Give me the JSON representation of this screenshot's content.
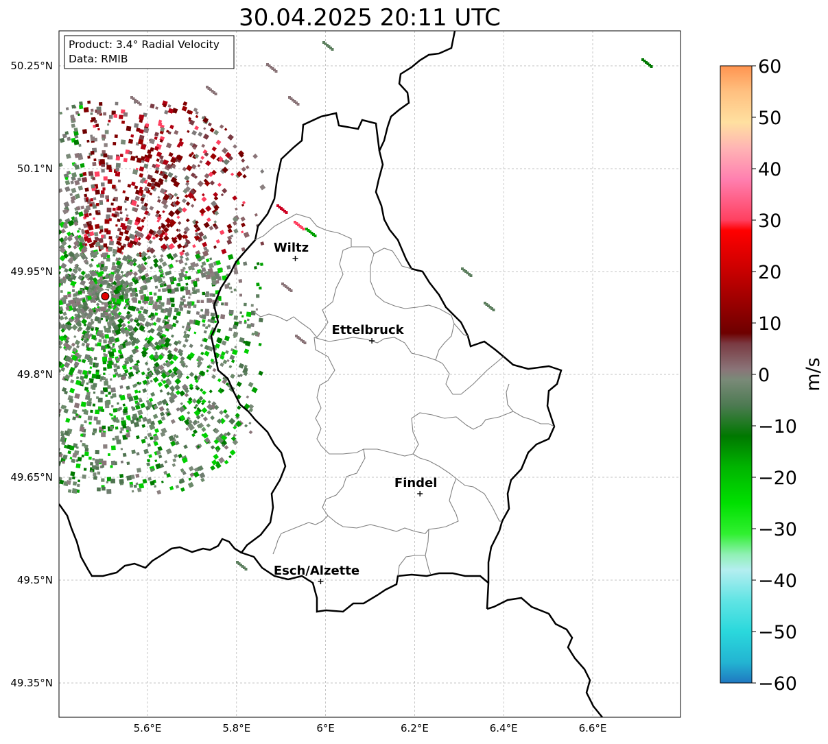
{
  "title": "30.04.2025 20:11 UTC",
  "info_box": {
    "product": "Product: 3.4° Radial Velocity",
    "data": "Data: RMIB"
  },
  "map": {
    "lon_range": [
      5.4,
      6.8
    ],
    "lat_range": [
      49.3,
      50.3
    ],
    "lon_ticks": [
      {
        "value": 5.6,
        "label": "5.6°E"
      },
      {
        "value": 5.8,
        "label": "5.8°E"
      },
      {
        "value": 6.0,
        "label": "6°E"
      },
      {
        "value": 6.2,
        "label": "6.2°E"
      },
      {
        "value": 6.4,
        "label": "6.4°E"
      },
      {
        "value": 6.6,
        "label": "6.6°E"
      }
    ],
    "lat_ticks": [
      {
        "value": 50.25,
        "label": "50.25°N"
      },
      {
        "value": 50.1,
        "label": "50.1°N"
      },
      {
        "value": 49.95,
        "label": "49.95°N"
      },
      {
        "value": 49.8,
        "label": "49.8°N"
      },
      {
        "value": 49.65,
        "label": "49.65°N"
      },
      {
        "value": 49.5,
        "label": "49.5°N"
      },
      {
        "value": 49.35,
        "label": "49.35°N"
      }
    ],
    "grid": true,
    "radar_site": {
      "lon": 5.505,
      "lat": 49.914
    },
    "cities": [
      {
        "name": "Wiltz",
        "lon": 5.932,
        "lat": 49.969
      },
      {
        "name": "Ettelbruck",
        "lon": 6.104,
        "lat": 49.849
      },
      {
        "name": "Findel",
        "lon": 6.212,
        "lat": 49.626
      },
      {
        "name": "Esch/Alzette",
        "lon": 5.989,
        "lat": 49.498
      }
    ],
    "colors": {
      "border": "#000000",
      "canton_lines": "#808080",
      "grid": "#b0b0b0",
      "radar_dot": "#e00000"
    }
  },
  "colorbar": {
    "unit": "m/s",
    "range": [
      -60,
      60
    ],
    "ticks": [
      {
        "value": 60,
        "label": "60"
      },
      {
        "value": 50,
        "label": "50"
      },
      {
        "value": 40,
        "label": "40"
      },
      {
        "value": 30,
        "label": "30"
      },
      {
        "value": 20,
        "label": "20"
      },
      {
        "value": 10,
        "label": "10"
      },
      {
        "value": 0,
        "label": "0"
      },
      {
        "value": -10,
        "label": "−10"
      },
      {
        "value": -20,
        "label": "−20"
      },
      {
        "value": -30,
        "label": "−30"
      },
      {
        "value": -40,
        "label": "−40"
      },
      {
        "value": -50,
        "label": "−50"
      },
      {
        "value": -60,
        "label": "−60"
      }
    ],
    "stops": [
      {
        "value": -60,
        "color": "#1f78c1"
      },
      {
        "value": -56,
        "color": "#23b4d2"
      },
      {
        "value": -50,
        "color": "#2ad8dc"
      },
      {
        "value": -44,
        "color": "#60e4e4"
      },
      {
        "value": -38,
        "color": "#b4eef0"
      },
      {
        "value": -35,
        "color": "#90f0b4"
      },
      {
        "value": -31,
        "color": "#30f030"
      },
      {
        "value": -25,
        "color": "#00e000"
      },
      {
        "value": -18,
        "color": "#00b400"
      },
      {
        "value": -12,
        "color": "#007800"
      },
      {
        "value": -6,
        "color": "#4d7a52"
      },
      {
        "value": -1,
        "color": "#7a8a78"
      },
      {
        "value": 1,
        "color": "#8a7478"
      },
      {
        "value": 6,
        "color": "#7a3a42"
      },
      {
        "value": 8,
        "color": "#6e0000"
      },
      {
        "value": 20,
        "color": "#c80000"
      },
      {
        "value": 28,
        "color": "#ff0000"
      },
      {
        "value": 30,
        "color": "#ff4060"
      },
      {
        "value": 38,
        "color": "#ff80b0"
      },
      {
        "value": 44,
        "color": "#ffb4b4"
      },
      {
        "value": 49,
        "color": "#ffe0a0"
      },
      {
        "value": 55,
        "color": "#ffc080"
      },
      {
        "value": 60,
        "color": "#ff9450"
      }
    ]
  }
}
